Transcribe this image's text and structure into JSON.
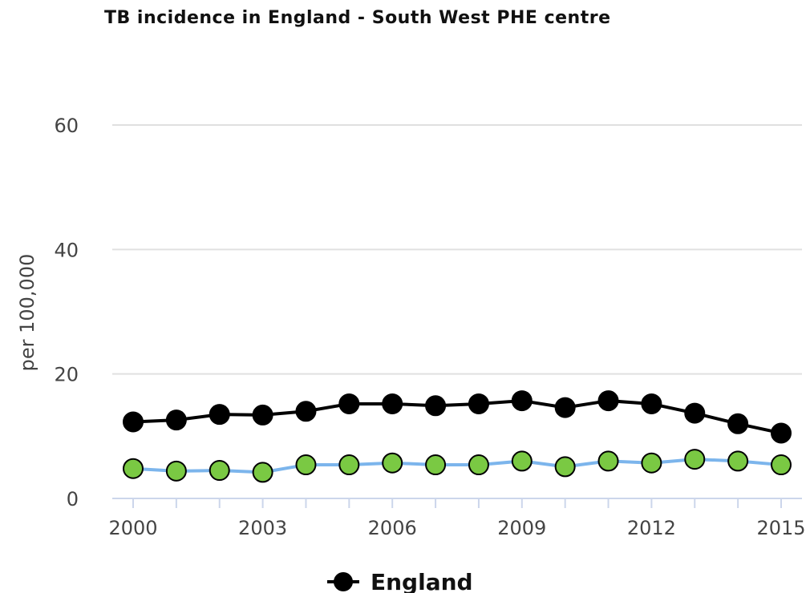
{
  "chart_data": {
    "type": "line",
    "title": "TB incidence in England - South West PHE centre",
    "xlabel": "",
    "ylabel": "per 100,000",
    "x": [
      2000,
      2001,
      2002,
      2003,
      2004,
      2005,
      2006,
      2007,
      2008,
      2009,
      2010,
      2011,
      2012,
      2013,
      2014,
      2015
    ],
    "x_tick_labels": [
      "2000",
      "2003",
      "2006",
      "2009",
      "2012",
      "2015"
    ],
    "y_tick_labels": [
      "0",
      "20",
      "40",
      "60"
    ],
    "ylim": [
      0,
      60
    ],
    "grid": true,
    "legend_position": "bottom",
    "series": [
      {
        "name": "England",
        "color": "#000000",
        "marker_color": "#000000",
        "values": [
          12.3,
          12.6,
          13.5,
          13.4,
          14.0,
          15.2,
          15.2,
          14.9,
          15.2,
          15.7,
          14.6,
          15.7,
          15.2,
          13.7,
          12.0,
          10.5
        ]
      },
      {
        "name": "",
        "color": "#7cb5ec",
        "marker_color": "#7ac943",
        "values": [
          4.8,
          4.4,
          4.5,
          4.2,
          5.4,
          5.4,
          5.7,
          5.4,
          5.4,
          6.0,
          5.1,
          6.0,
          5.7,
          6.3,
          6.0,
          5.4
        ]
      }
    ]
  }
}
